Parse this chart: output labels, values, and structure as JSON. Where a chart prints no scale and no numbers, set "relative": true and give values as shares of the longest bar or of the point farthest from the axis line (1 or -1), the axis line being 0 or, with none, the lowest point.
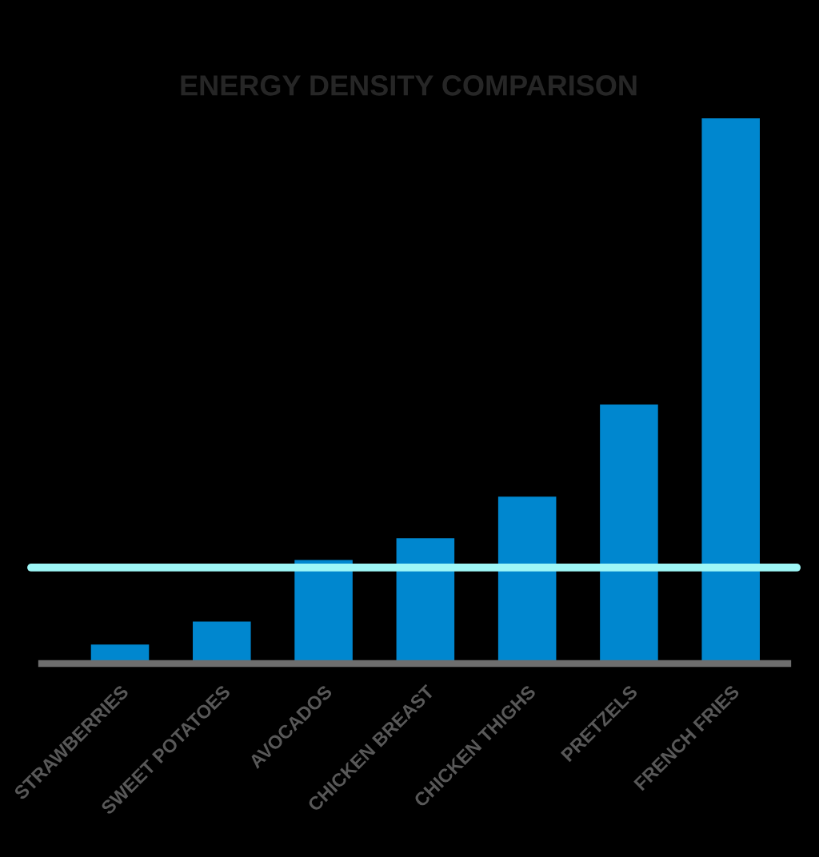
{
  "chart_data": {
    "type": "bar",
    "title": "ENERGY DENSITY COMPARISON",
    "categories": [
      "STRAWBERRIES",
      "SWEET POTATOES",
      "AVOCADOS",
      "CHICKEN BREAST",
      "CHICKEN THIGHS",
      "PRETZELS",
      "FRENCH FRIES"
    ],
    "values": [
      0.035,
      0.077,
      0.19,
      0.23,
      0.306,
      0.475,
      1
    ],
    "color": "#0087cf",
    "relative": true,
    "ref_lines": [
      {
        "axis": "y",
        "value": 0.176,
        "color": "#9ef7f7"
      }
    ]
  }
}
